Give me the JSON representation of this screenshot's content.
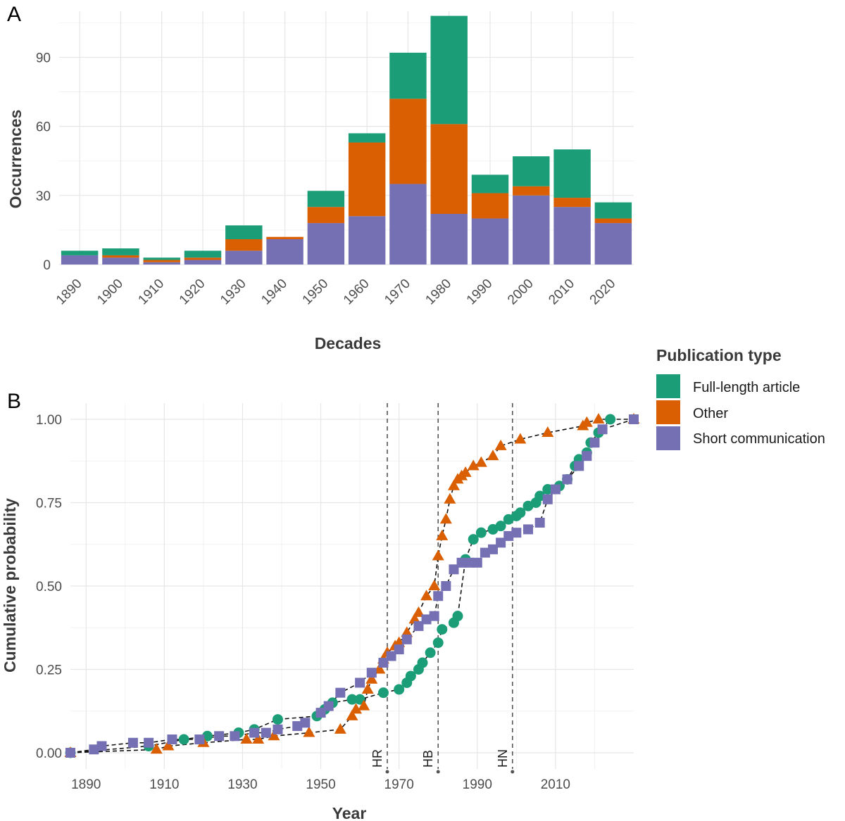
{
  "colors": {
    "full_length": "#1b9e77",
    "other": "#d95f02",
    "short": "#7570b3"
  },
  "legend": {
    "title": "Publication type",
    "items": [
      {
        "label": "Full-length article",
        "key": "full_length"
      },
      {
        "label": "Other",
        "key": "other"
      },
      {
        "label": "Short communication",
        "key": "short"
      }
    ]
  },
  "chart_data": [
    {
      "panel": "A",
      "type": "bar",
      "stacked": true,
      "xlabel": "Decades",
      "ylabel": "Occurrences",
      "ylim": [
        0,
        110
      ],
      "yticks": [
        0,
        30,
        60,
        90
      ],
      "categories": [
        "1890",
        "1900",
        "1910",
        "1920",
        "1930",
        "1940",
        "1950",
        "1960",
        "1970",
        "1980",
        "1990",
        "2000",
        "2010",
        "2020"
      ],
      "series": [
        {
          "name": "Short communication",
          "key": "short",
          "values": [
            4,
            3,
            1,
            2,
            6,
            11,
            18,
            21,
            35,
            22,
            20,
            30,
            25,
            18
          ]
        },
        {
          "name": "Other",
          "key": "other",
          "values": [
            0,
            1,
            1,
            1,
            5,
            1,
            7,
            32,
            37,
            39,
            11,
            4,
            4,
            2
          ]
        },
        {
          "name": "Full-length article",
          "key": "full_length",
          "values": [
            2,
            3,
            1,
            3,
            6,
            0,
            7,
            4,
            20,
            47,
            8,
            13,
            21,
            7
          ]
        }
      ]
    },
    {
      "panel": "B",
      "type": "scatter",
      "cumulative": true,
      "xlabel": "Year",
      "ylabel": "Cumulative probability",
      "xlim": [
        1886,
        2030
      ],
      "ylim": [
        0,
        1
      ],
      "xticks": [
        1890,
        1910,
        1930,
        1950,
        1970,
        1990,
        2010
      ],
      "yticks": [
        "0.00",
        "0.25",
        "0.50",
        "0.75",
        "1.00"
      ],
      "vlines": [
        {
          "label": "HR",
          "x": 1967
        },
        {
          "label": "HB",
          "x": 1980
        },
        {
          "label": "HN",
          "x": 1999
        }
      ],
      "series": [
        {
          "name": "Full-length article",
          "key": "full_length",
          "marker": "circle",
          "x": [
            1886,
            1906,
            1915,
            1921,
            1929,
            1933,
            1939,
            1949,
            1951,
            1953,
            1958,
            1960,
            1966,
            1970,
            1972,
            1973,
            1975,
            1976,
            1978,
            1980,
            1981,
            1984,
            1985,
            1987,
            1989,
            1991,
            1994,
            1996,
            1998,
            2000,
            2001,
            2003,
            2005,
            2006,
            2008,
            2011,
            2013,
            2015,
            2016,
            2018,
            2019,
            2021,
            2024
          ],
          "y": [
            0.0,
            0.02,
            0.04,
            0.05,
            0.06,
            0.07,
            0.1,
            0.11,
            0.13,
            0.15,
            0.16,
            0.16,
            0.18,
            0.19,
            0.21,
            0.23,
            0.25,
            0.27,
            0.3,
            0.33,
            0.37,
            0.39,
            0.41,
            0.58,
            0.64,
            0.66,
            0.67,
            0.68,
            0.7,
            0.71,
            0.72,
            0.74,
            0.75,
            0.77,
            0.79,
            0.8,
            0.82,
            0.86,
            0.88,
            0.9,
            0.93,
            0.96,
            1.0
          ]
        },
        {
          "name": "Other",
          "key": "other",
          "marker": "triangle",
          "x": [
            1886,
            1908,
            1911,
            1920,
            1931,
            1934,
            1938,
            1947,
            1955,
            1958,
            1959,
            1961,
            1962,
            1963,
            1965,
            1966,
            1967,
            1969,
            1970,
            1972,
            1974,
            1975,
            1977,
            1979,
            1980,
            1981,
            1982,
            1983,
            1984,
            1985,
            1986,
            1987,
            1989,
            1991,
            1994,
            1996,
            2001,
            2008,
            2017,
            2018,
            2021,
            2030
          ],
          "y": [
            0.0,
            0.01,
            0.02,
            0.03,
            0.04,
            0.04,
            0.05,
            0.06,
            0.07,
            0.11,
            0.13,
            0.14,
            0.19,
            0.22,
            0.25,
            0.28,
            0.3,
            0.32,
            0.33,
            0.36,
            0.4,
            0.42,
            0.47,
            0.5,
            0.59,
            0.65,
            0.7,
            0.76,
            0.8,
            0.82,
            0.83,
            0.84,
            0.86,
            0.87,
            0.89,
            0.92,
            0.94,
            0.96,
            0.98,
            0.99,
            1.0,
            1.0
          ]
        },
        {
          "name": "Short communication",
          "key": "short",
          "marker": "square",
          "x": [
            1886,
            1892,
            1894,
            1902,
            1906,
            1912,
            1919,
            1924,
            1928,
            1933,
            1936,
            1939,
            1944,
            1946,
            1950,
            1952,
            1955,
            1960,
            1963,
            1966,
            1968,
            1970,
            1972,
            1975,
            1977,
            1979,
            1980,
            1982,
            1984,
            1986,
            1988,
            1990,
            1992,
            1994,
            1996,
            1998,
            2000,
            2003,
            2006,
            2008,
            2010,
            2013,
            2016,
            2018,
            2020,
            2022,
            2030
          ],
          "y": [
            0.0,
            0.01,
            0.02,
            0.03,
            0.03,
            0.04,
            0.04,
            0.05,
            0.05,
            0.06,
            0.06,
            0.07,
            0.08,
            0.09,
            0.12,
            0.14,
            0.18,
            0.21,
            0.24,
            0.27,
            0.29,
            0.31,
            0.34,
            0.38,
            0.4,
            0.41,
            0.47,
            0.5,
            0.55,
            0.57,
            0.57,
            0.57,
            0.6,
            0.61,
            0.63,
            0.65,
            0.66,
            0.67,
            0.69,
            0.76,
            0.79,
            0.82,
            0.86,
            0.89,
            0.93,
            0.97,
            1.0
          ]
        }
      ]
    }
  ]
}
